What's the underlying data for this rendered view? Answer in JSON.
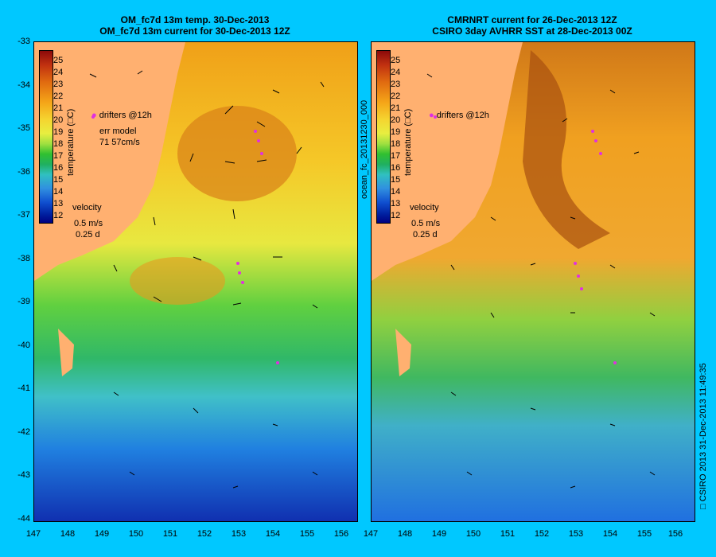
{
  "left_panel": {
    "title1": "OM_fc7d 13m temp. 30-Dec-2013",
    "title2": "OM_fc7d 13m current for 30-Dec-2013 12Z",
    "drifters_label": "drifters @12h",
    "err_label": "err model",
    "err_value": "71 57cm/s",
    "velocity_label": "velocity",
    "velocity_scale": "0.5 m/s",
    "velocity_time": "0.25 d"
  },
  "right_panel": {
    "title1": "CMRNRT current for 26-Dec-2013 12Z",
    "title2": "CSIRO 3day AVHRR SST at 28-Dec-2013 00Z",
    "drifters_label": "drifters @12h",
    "velocity_label": "velocity",
    "velocity_scale": "0.5 m/s",
    "velocity_time": "0.25 d"
  },
  "colorbar": {
    "title": "temperature (□C)",
    "ticks": [
      "25",
      "24",
      "23",
      "22",
      "21",
      "20",
      "19",
      "18",
      "17",
      "16",
      "15",
      "14",
      "13",
      "12"
    ]
  },
  "y_ticks": [
    "-33",
    "-34",
    "-35",
    "-36",
    "-37",
    "-38",
    "-39",
    "-40",
    "-41",
    "-42",
    "-43",
    "-44"
  ],
  "x_ticks": [
    "147",
    "148",
    "149",
    "150",
    "151",
    "152",
    "153",
    "154",
    "155",
    "156"
  ],
  "side_label_middle": "ocean_fc_20131230_000",
  "side_label_right": "□ CSIRO 2013   31-Dec-2013 11:49:35",
  "colors": {
    "background": "#00c8ff",
    "land": "#ffb070"
  }
}
